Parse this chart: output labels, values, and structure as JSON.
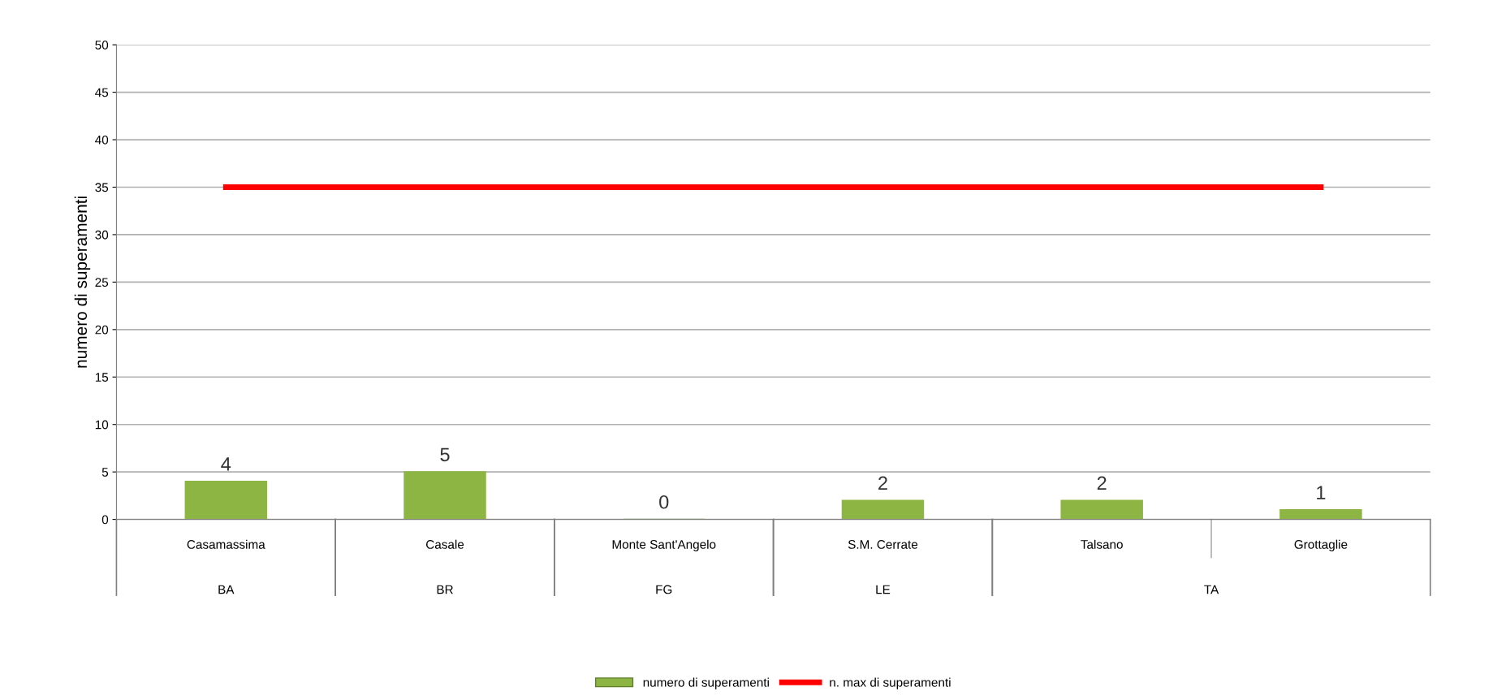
{
  "chart_data": {
    "type": "bar",
    "ylabel": "numero di superamenti",
    "categories": [
      "Casamassima",
      "Casale",
      "Monte Sant'Angelo",
      "S.M. Cerrate",
      "Talsano",
      "Grottaglie"
    ],
    "series": [
      {
        "name": "numero di superamenti",
        "color": "#8db543",
        "values": [
          4,
          5,
          0,
          2,
          2,
          1
        ],
        "value_labels": [
          "4",
          "5",
          "0",
          "2",
          "2",
          "1"
        ]
      },
      {
        "name": "n. max di superamenti",
        "type": "line",
        "color": "#ff0000",
        "values": [
          35,
          35,
          35,
          35,
          35,
          35
        ]
      }
    ],
    "annotations": [
      "BA",
      "BR",
      "FG",
      "LE",
      "TA"
    ],
    "ylim": [
      0,
      50
    ],
    "yticks": [
      0,
      5,
      10,
      15,
      20,
      25,
      30,
      35,
      40,
      45,
      50
    ],
    "grid": "y",
    "legend": "bottom",
    "marker": "none",
    "line_style": "solid"
  }
}
